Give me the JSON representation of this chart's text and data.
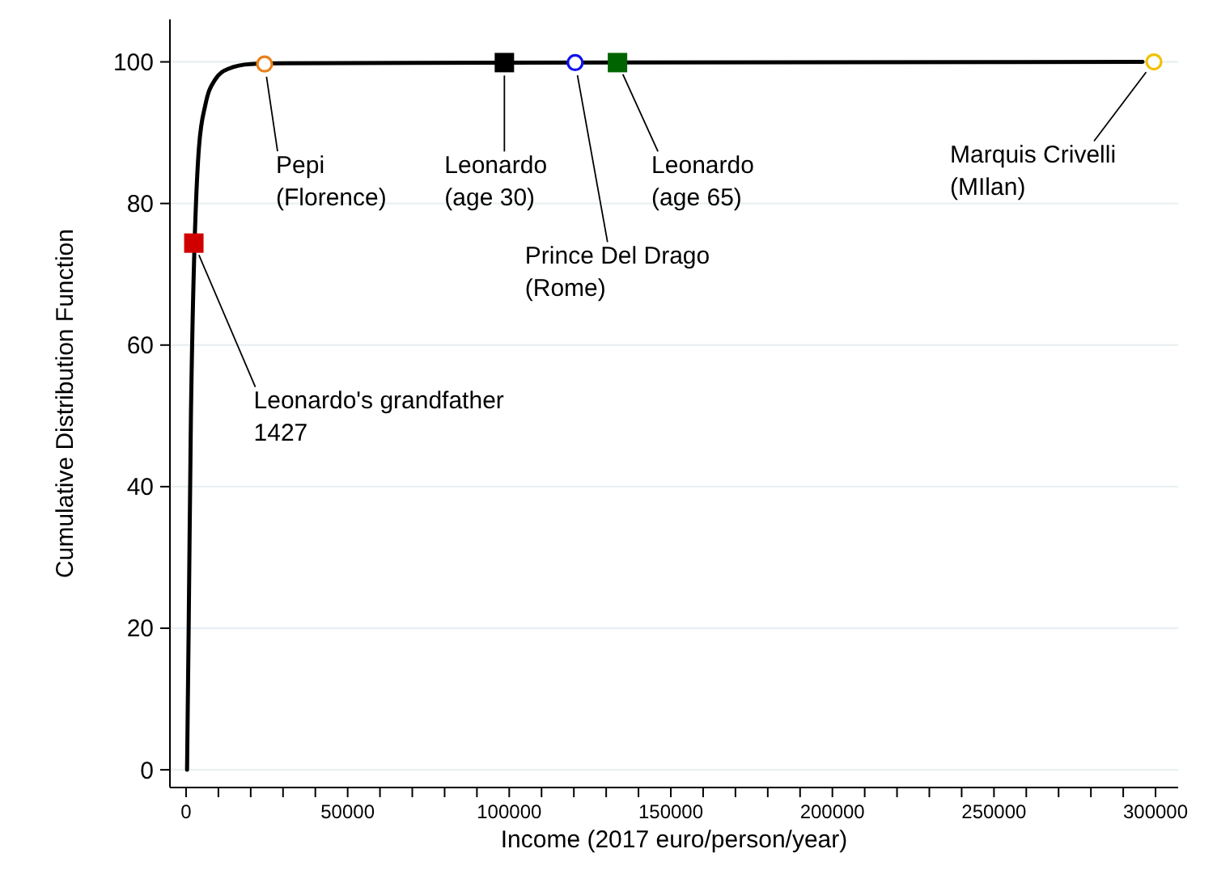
{
  "chart_data": {
    "type": "line",
    "xlabel": "Income (2017 euro/person/year)",
    "ylabel": "Cumulative Distribution Function",
    "xlim": [
      -5000,
      307000
    ],
    "ylim": [
      -2.5,
      106
    ],
    "xticks": [
      0,
      {
        "value": 10000,
        "label": null
      },
      {
        "value": 20000,
        "label": null
      },
      {
        "value": 30000,
        "label": null
      },
      {
        "value": 40000,
        "label": null
      },
      50000,
      {
        "value": 60000,
        "label": null
      },
      {
        "value": 70000,
        "label": null
      },
      {
        "value": 80000,
        "label": null
      },
      {
        "value": 90000,
        "label": null
      },
      100000,
      {
        "value": 110000,
        "label": null
      },
      {
        "value": 120000,
        "label": null
      },
      {
        "value": 130000,
        "label": null
      },
      {
        "value": 140000,
        "label": null
      },
      150000,
      {
        "value": 160000,
        "label": null
      },
      {
        "value": 170000,
        "label": null
      },
      {
        "value": 180000,
        "label": null
      },
      {
        "value": 190000,
        "label": null
      },
      200000,
      {
        "value": 210000,
        "label": null
      },
      {
        "value": 220000,
        "label": null
      },
      {
        "value": 230000,
        "label": null
      },
      {
        "value": 240000,
        "label": null
      },
      250000,
      {
        "value": 260000,
        "label": null
      },
      {
        "value": 270000,
        "label": null
      },
      {
        "value": 280000,
        "label": null
      },
      {
        "value": 290000,
        "label": null
      },
      300000
    ],
    "yticks": [
      0,
      20,
      40,
      60,
      80,
      100
    ],
    "grid": "y",
    "series": [
      {
        "type": "line",
        "color": "#000000",
        "x": [
          300,
          800,
          1500,
          4000,
          6000,
          9000,
          13000,
          20000,
          30000,
          100000,
          296000
        ],
        "values": [
          0,
          20,
          50,
          88,
          94,
          97.5,
          99,
          99.7,
          99.8,
          99.9,
          100
        ]
      },
      {
        "type": "scatter",
        "marker": "square",
        "color": "#d00000",
        "x": [
          2400
        ],
        "values": [
          74.4
        ]
      },
      {
        "type": "scatter",
        "marker": "circle",
        "color": "#e8801a",
        "x": [
          24300
        ],
        "values": [
          99.7
        ]
      },
      {
        "type": "scatter",
        "marker": "square",
        "color": "#000000",
        "x": [
          98500
        ],
        "values": [
          99.9
        ]
      },
      {
        "type": "scatter",
        "marker": "circle",
        "color": "#1010ee",
        "x": [
          120400
        ],
        "values": [
          99.9
        ]
      },
      {
        "type": "scatter",
        "marker": "square",
        "color": "#006400",
        "x": [
          133500
        ],
        "values": [
          99.9
        ]
      },
      {
        "type": "scatter",
        "marker": "circle",
        "color": "#f0c000",
        "x": [
          299500
        ],
        "values": [
          100
        ]
      }
    ],
    "annotations": [
      {
        "text": "Leonardo's grandfather\n1427",
        "x": 2400,
        "y": 74.4
      },
      {
        "text": "Pepi\n(Florence)",
        "x": 24300,
        "y": 99.7
      },
      {
        "text": "Leonardo\n(age 30)",
        "x": 98500,
        "y": 99.9
      },
      {
        "text": "Prince Del Drago\n(Rome)",
        "x": 120400,
        "y": 99.9
      },
      {
        "text": "Leonardo\n(age 65)",
        "x": 133500,
        "y": 99.9
      },
      {
        "text": "Marquis Crivelli\n(MIlan)",
        "x": 299500,
        "y": 100
      }
    ]
  }
}
